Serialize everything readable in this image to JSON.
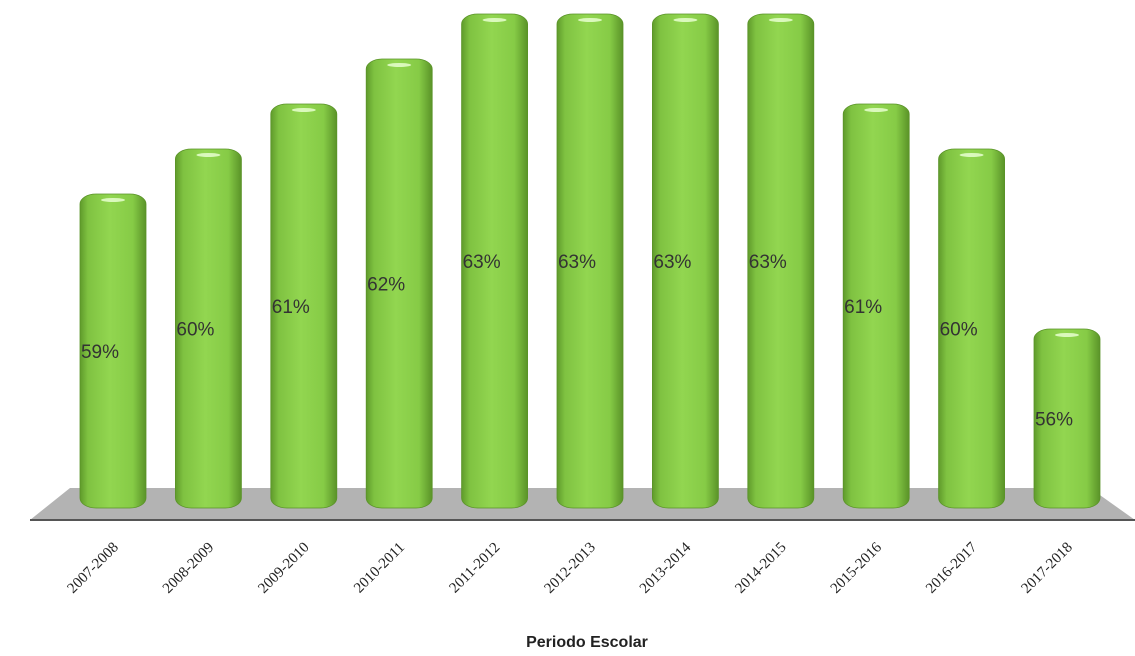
{
  "chart_data": {
    "type": "bar",
    "categories": [
      "2007-2008",
      "2008-2009",
      "2009-2010",
      "2010-2011",
      "2011-2012",
      "2012-2013",
      "2013-2014",
      "2014-2015",
      "2015-2016",
      "2016-2017",
      "2017-2018"
    ],
    "values": [
      59,
      60,
      61,
      62,
      63,
      63,
      63,
      63,
      61,
      60,
      56
    ],
    "value_labels": [
      "59%",
      "60%",
      "61%",
      "62%",
      "63%",
      "63%",
      "63%",
      "63%",
      "61%",
      "60%",
      "56%"
    ],
    "title": "",
    "xlabel": "Periodo Escolar",
    "ylabel": "",
    "grid": false,
    "legend": "none",
    "colors": {
      "bar": "#8fd14f",
      "bar_dark": "#5f9a2b",
      "bar_light": "#c2ef8a",
      "floor": "#b3b3b3",
      "axis": "#555555"
    }
  }
}
